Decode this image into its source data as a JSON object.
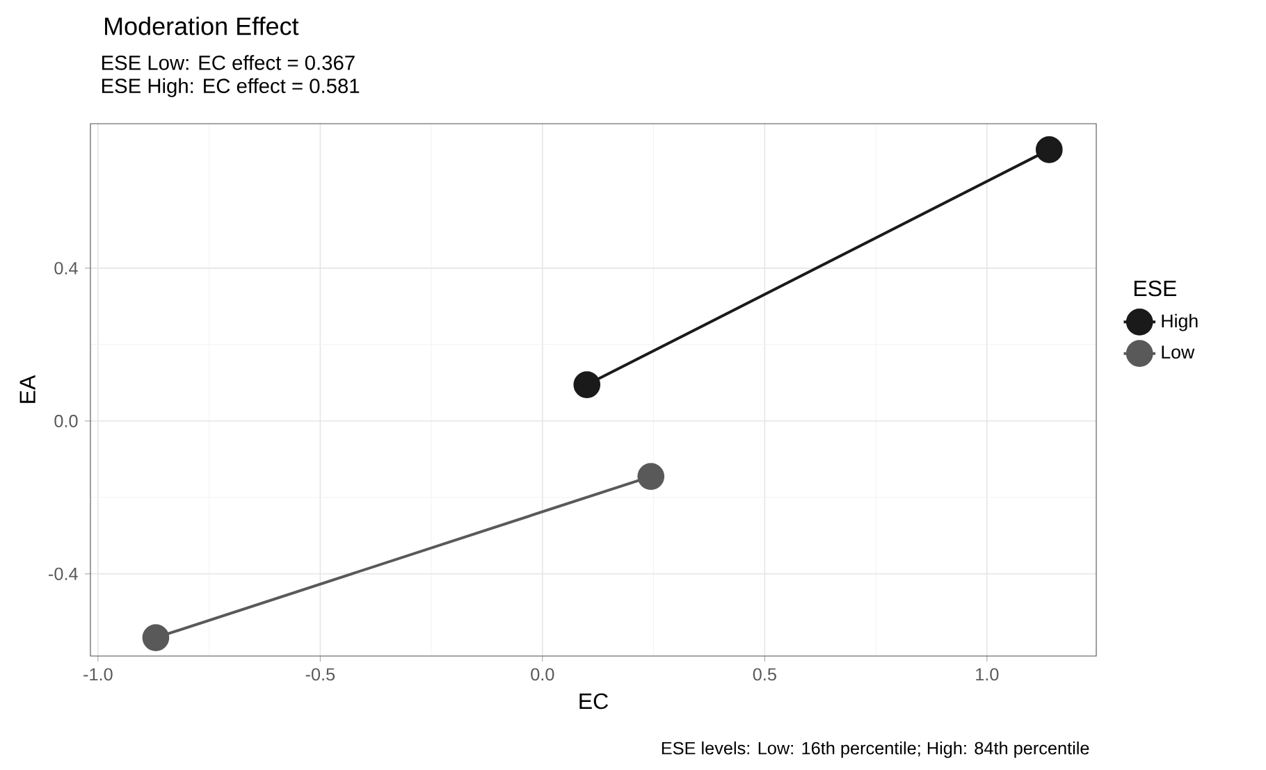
{
  "chart_data": {
    "type": "line",
    "title": "Moderation Effect",
    "subtitle": "ESE Low: EC effect = 0.367\nESE High: EC effect = 0.581",
    "xlabel": "EC",
    "ylabel": "EA",
    "legend_title": "ESE",
    "series": [
      {
        "name": "High",
        "color": "#1a1a1a",
        "x": [
          0.1,
          1.14
        ],
        "values": [
          0.095,
          0.71
        ]
      },
      {
        "name": "Low",
        "color": "#595959",
        "x": [
          -0.87,
          0.244
        ],
        "values": [
          -0.567,
          -0.145
        ]
      }
    ],
    "xlim": [
      -1.017,
      1.246
    ],
    "ylim": [
      -0.615,
      0.778
    ],
    "xticks": [
      {
        "value": -1.0,
        "label": "-1.0"
      },
      {
        "value": -0.5,
        "label": "-0.5"
      },
      {
        "value": 0.0,
        "label": "0.0"
      },
      {
        "value": 0.5,
        "label": "0.5"
      },
      {
        "value": 1.0,
        "label": "1.0"
      }
    ],
    "yticks": [
      {
        "value": -0.4,
        "label": "-0.4"
      },
      {
        "value": 0.0,
        "label": "0.0"
      },
      {
        "value": 0.4,
        "label": "0.4"
      }
    ],
    "grid": true,
    "legend": "right",
    "marker": "circle",
    "line_style": "solid",
    "annotations": [
      "ESE levels: Low: 16th percentile; High: 84th percentile"
    ]
  }
}
